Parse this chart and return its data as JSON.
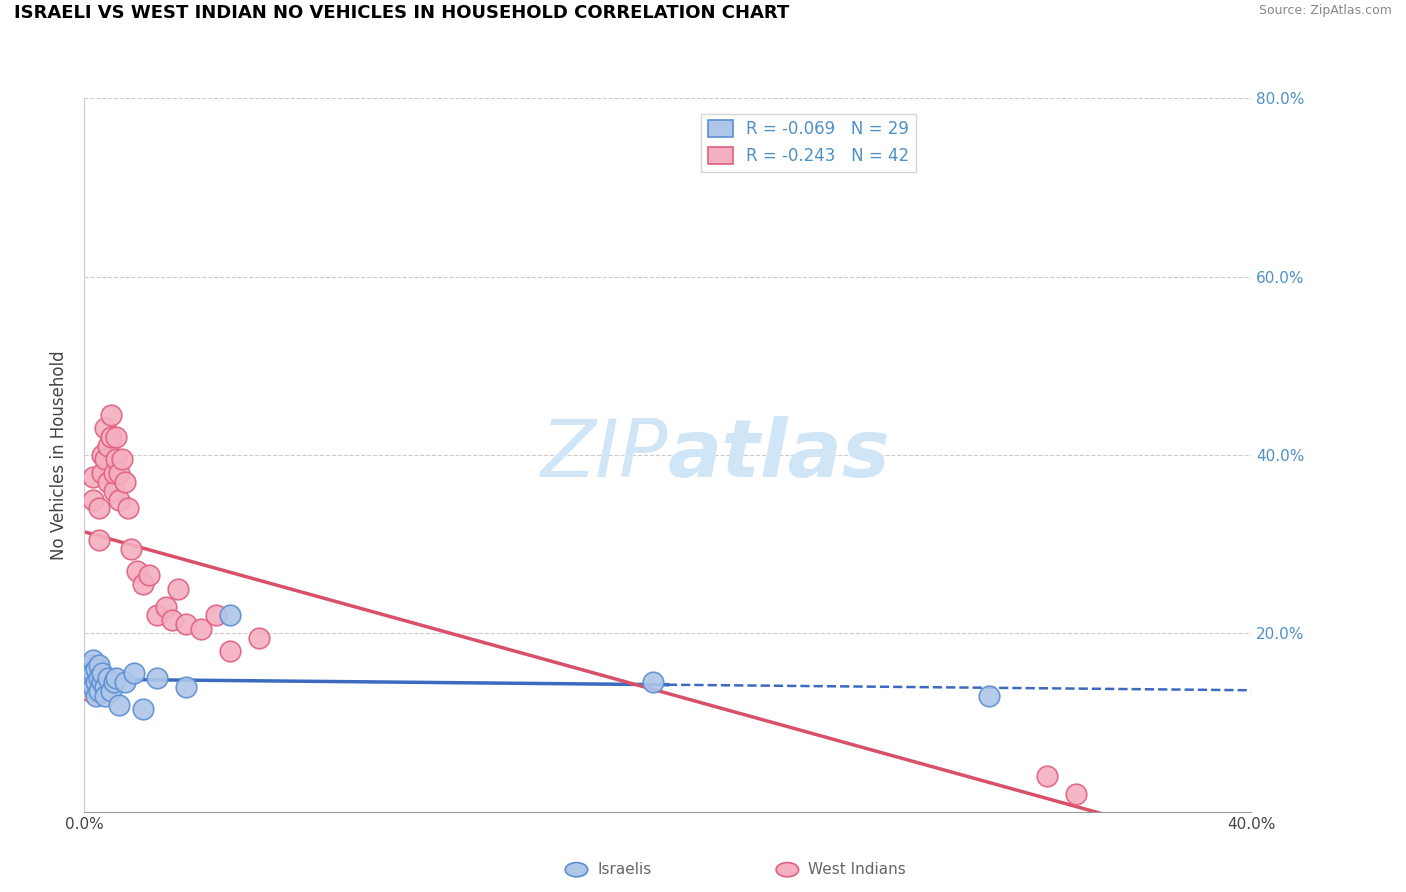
{
  "title": "ISRAELI VS WEST INDIAN NO VEHICLES IN HOUSEHOLD CORRELATION CHART",
  "source_text": "Source: ZipAtlas.com",
  "ylabel": "No Vehicles in Household",
  "xlim": [
    0.0,
    0.4
  ],
  "ylim": [
    0.0,
    0.8
  ],
  "israeli_R": -0.069,
  "israeli_N": 29,
  "westindian_R": -0.243,
  "westindian_N": 42,
  "israeli_color": "#aec6e8",
  "westindian_color": "#f4afc0",
  "israeli_edge_color": "#5b8fd4",
  "westindian_edge_color": "#e06080",
  "israeli_line_color": "#3b6abf",
  "westindian_line_color": "#d9506a",
  "watermark_color": "#d0e5f5",
  "background_color": "#ffffff",
  "grid_color": "#cccccc",
  "tick_label_color": "#5090c8",
  "israeli_x": [
    0.001,
    0.002,
    0.002,
    0.003,
    0.003,
    0.003,
    0.004,
    0.004,
    0.004,
    0.005,
    0.005,
    0.005,
    0.006,
    0.006,
    0.007,
    0.007,
    0.008,
    0.009,
    0.01,
    0.011,
    0.012,
    0.014,
    0.017,
    0.02,
    0.025,
    0.035,
    0.05,
    0.195,
    0.31
  ],
  "israeli_y": [
    0.155,
    0.165,
    0.145,
    0.17,
    0.155,
    0.14,
    0.16,
    0.145,
    0.13,
    0.165,
    0.15,
    0.135,
    0.145,
    0.155,
    0.14,
    0.13,
    0.15,
    0.135,
    0.145,
    0.15,
    0.12,
    0.145,
    0.155,
    0.115,
    0.15,
    0.14,
    0.22,
    0.145,
    0.13
  ],
  "westindian_x": [
    0.001,
    0.002,
    0.002,
    0.003,
    0.003,
    0.004,
    0.004,
    0.005,
    0.005,
    0.005,
    0.006,
    0.006,
    0.007,
    0.007,
    0.008,
    0.008,
    0.009,
    0.009,
    0.01,
    0.01,
    0.011,
    0.011,
    0.012,
    0.012,
    0.013,
    0.014,
    0.015,
    0.016,
    0.018,
    0.02,
    0.022,
    0.025,
    0.028,
    0.03,
    0.032,
    0.035,
    0.04,
    0.045,
    0.05,
    0.06,
    0.33,
    0.34
  ],
  "westindian_y": [
    0.15,
    0.16,
    0.135,
    0.375,
    0.35,
    0.165,
    0.155,
    0.16,
    0.34,
    0.305,
    0.38,
    0.4,
    0.43,
    0.395,
    0.41,
    0.37,
    0.445,
    0.42,
    0.36,
    0.38,
    0.42,
    0.395,
    0.35,
    0.38,
    0.395,
    0.37,
    0.34,
    0.295,
    0.27,
    0.255,
    0.265,
    0.22,
    0.23,
    0.215,
    0.25,
    0.21,
    0.205,
    0.22,
    0.18,
    0.195,
    0.04,
    0.02
  ],
  "israeli_trend_x_end": 0.2,
  "westindian_trend_y_start": 0.27,
  "westindian_trend_y_end": 0.0
}
